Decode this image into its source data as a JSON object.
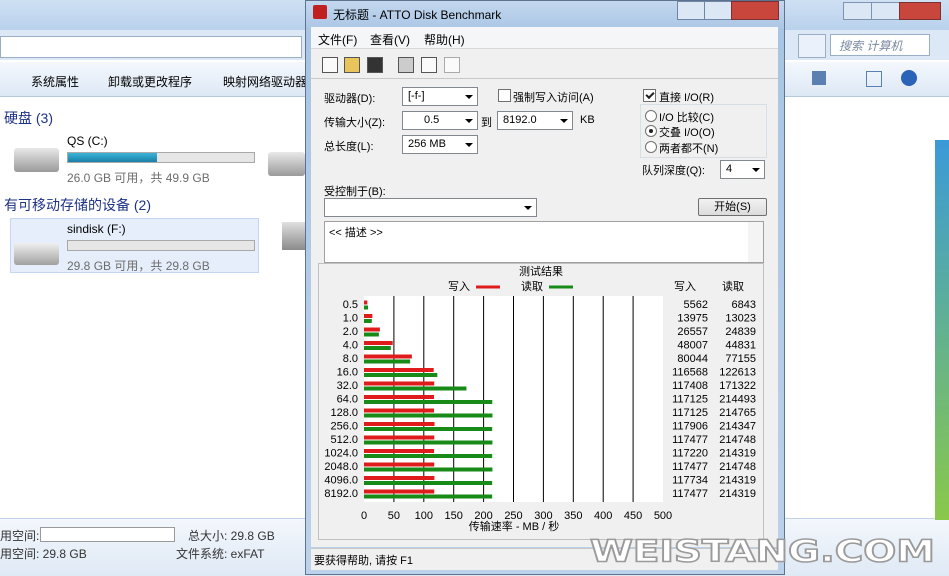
{
  "explorer": {
    "search_placeholder": "搜索 计算机",
    "toolbar": [
      "系统属性",
      "卸载或更改程序",
      "映射网络驱动器"
    ],
    "groups": [
      {
        "title": "硬盘 (3)",
        "drives": [
          {
            "name": "QS (C:)",
            "space": "26.0 GB 可用，共 49.9 GB",
            "used_percent": 48
          }
        ]
      },
      {
        "title": "有可移动存储的设备 (2)",
        "drives": [
          {
            "name": "sindisk (F:)",
            "space": "29.8 GB 可用，共 29.8 GB",
            "used_percent": 0
          }
        ]
      }
    ],
    "details": [
      [
        "用空间:",
        "总大小: 29.8 GB"
      ],
      [
        "用空间: 29.8 GB",
        "文件系统: exFAT"
      ]
    ]
  },
  "atto": {
    "title": "无标题 - ATTO Disk Benchmark",
    "menu": [
      "文件(F)",
      "查看(V)",
      "帮助(H)"
    ],
    "drive_label": "驱动器(D):",
    "drive": "[-f-]",
    "force_write": "强制写入访问(A)",
    "direct_io": "直接 I/O(R)",
    "transfer_label": "传输大小(Z):",
    "transfer_from": "0.5",
    "to": "到",
    "transfer_to": "8192.0",
    "unit": "KB",
    "io_options": [
      "I/O 比较(C)",
      "交叠 I/O(O)",
      "两者都不(N)"
    ],
    "length_label": "总长度(L):",
    "length": "256 MB",
    "queue_label": "队列深度(Q):",
    "queue": "4",
    "controlled_label": "受控制于(B):",
    "start": "开始(S)",
    "description": "<< 描述 >>",
    "status": "要获得帮助, 请按 F1"
  },
  "watermark": "WEISTANG.COM",
  "chart_data": {
    "type": "bar",
    "orientation": "horizontal",
    "title": "测试结果",
    "xlabel": "传输速率 - MB / 秒",
    "categories": [
      "0.5",
      "1.0",
      "2.0",
      "4.0",
      "8.0",
      "16.0",
      "32.0",
      "64.0",
      "128.0",
      "256.0",
      "512.0",
      "1024.0",
      "2048.0",
      "4096.0",
      "8192.0"
    ],
    "series": [
      {
        "name": "写入",
        "color": "#e01b1b",
        "values": [
          5.562,
          13.975,
          26.557,
          48.007,
          80.044,
          116.568,
          117.408,
          117.125,
          117.125,
          117.906,
          117.477,
          117.22,
          117.477,
          117.734,
          117.477
        ],
        "value_labels": [
          "5562",
          "13975",
          "26557",
          "48007",
          "80044",
          "116568",
          "117408",
          "117125",
          "117125",
          "117906",
          "117477",
          "117220",
          "117477",
          "117734",
          "117477"
        ]
      },
      {
        "name": "读取",
        "color": "#178a17",
        "values": [
          6.843,
          13.023,
          24.839,
          44.831,
          77.155,
          122.613,
          171.322,
          214.493,
          214.765,
          214.347,
          214.748,
          214.319,
          214.748,
          214.319,
          214.319
        ],
        "value_labels": [
          "6843",
          "13023",
          "24839",
          "44831",
          "77155",
          "122613",
          "171322",
          "214493",
          "214765",
          "214347",
          "214748",
          "214319",
          "214748",
          "214319",
          "214319"
        ]
      }
    ],
    "xlim": [
      0,
      500
    ],
    "xticks": [
      0,
      50,
      100,
      150,
      200,
      250,
      300,
      350,
      400,
      450,
      500
    ],
    "grid": true
  }
}
